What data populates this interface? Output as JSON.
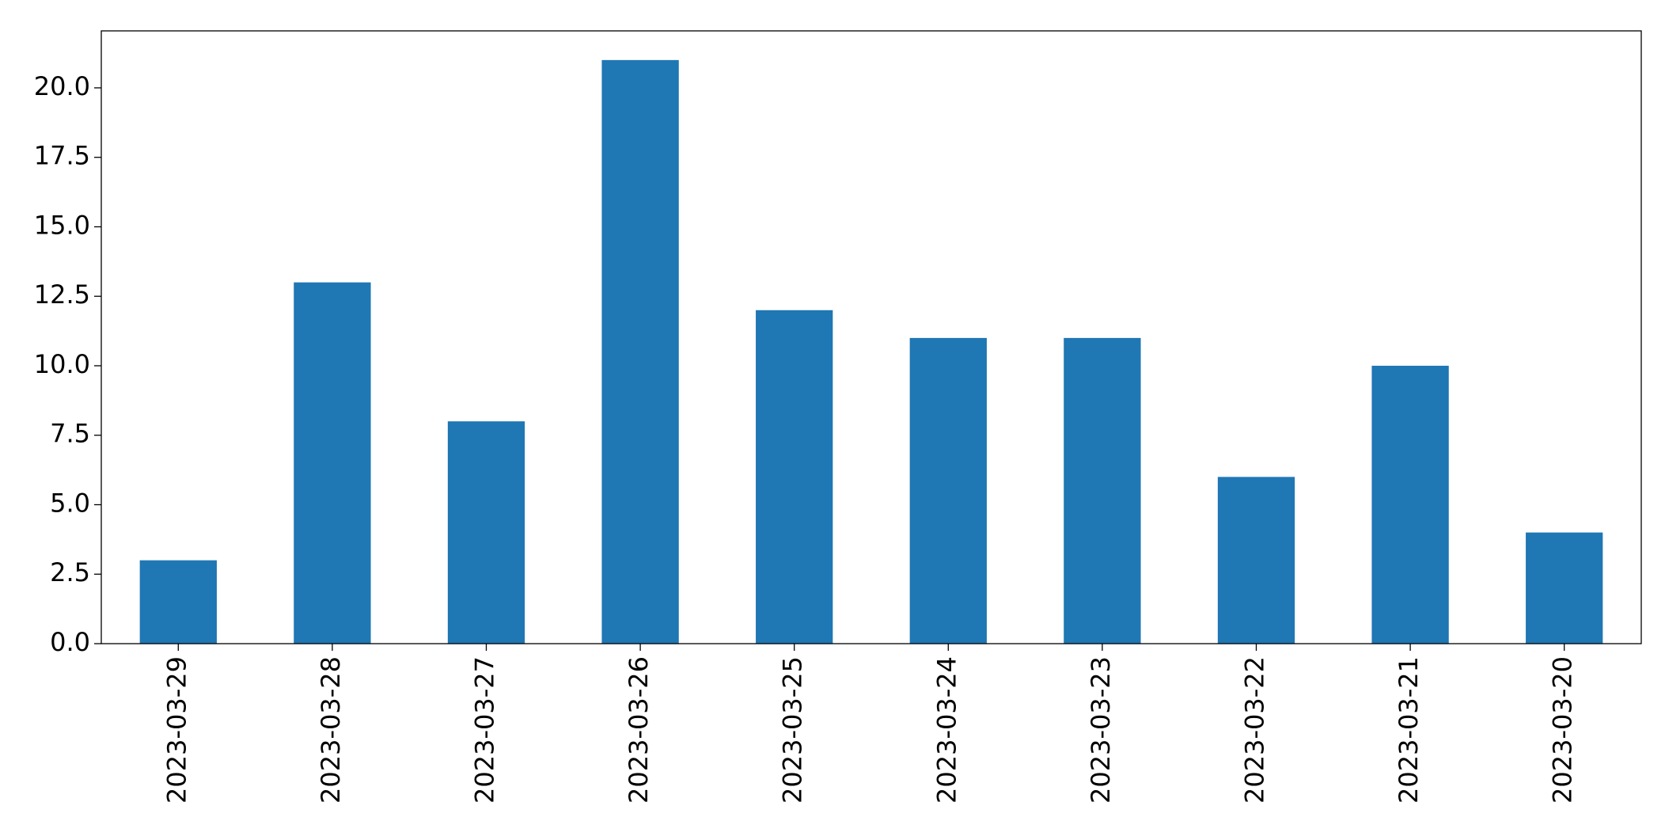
{
  "chart_data": {
    "type": "bar",
    "categories": [
      "2023-03-29",
      "2023-03-28",
      "2023-03-27",
      "2023-03-26",
      "2023-03-25",
      "2023-03-24",
      "2023-03-23",
      "2023-03-22",
      "2023-03-21",
      "2023-03-20"
    ],
    "values": [
      3,
      13,
      8,
      21,
      12,
      11,
      11,
      6,
      10,
      4
    ],
    "color": "#1f77b4",
    "ylim": [
      0,
      22.05
    ],
    "yticks": [
      {
        "value": 0,
        "label": "0.0"
      },
      2.5,
      {
        "value": 5,
        "label": "5.0"
      },
      7.5,
      {
        "value": 10,
        "label": "10.0"
      },
      12.5,
      {
        "value": 15,
        "label": "15.0"
      },
      17.5,
      {
        "value": 20,
        "label": "20.0"
      }
    ],
    "grid": false
  }
}
